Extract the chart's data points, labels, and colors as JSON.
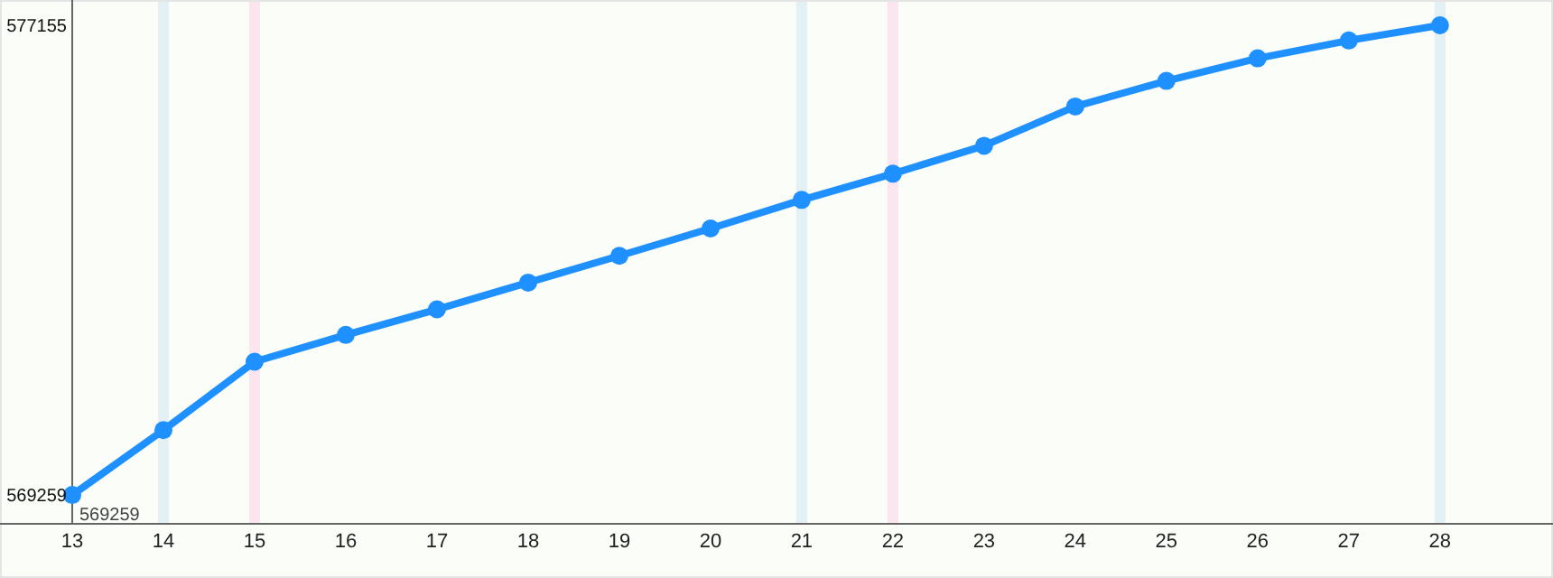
{
  "chart_data": {
    "type": "line",
    "x": [
      13,
      14,
      15,
      16,
      17,
      18,
      19,
      20,
      21,
      22,
      23,
      24,
      25,
      26,
      27,
      28
    ],
    "series": [
      {
        "color": "#1e90ff",
        "values": [
          569259,
          570350,
          571500,
          571950,
          572380,
          572830,
          573280,
          573740,
          574220,
          574660,
          575130,
          575790,
          576220,
          576600,
          576900,
          577155
        ]
      }
    ],
    "xlim": [
      13,
      29.2
    ],
    "xticks": [
      13,
      14,
      15,
      16,
      17,
      18,
      19,
      20,
      21,
      22,
      23,
      24,
      25,
      26,
      27,
      28
    ],
    "ylim": [
      568775,
      577550
    ],
    "yticks": [
      569259,
      577155
    ],
    "bands": [
      {
        "axis": "x",
        "from": 13.94,
        "to": 14.06,
        "color": "#e3f0f4"
      },
      {
        "axis": "x",
        "from": 14.94,
        "to": 15.06,
        "color": "#fbe6f0"
      },
      {
        "axis": "x",
        "from": 20.94,
        "to": 21.06,
        "color": "#e3f0f4"
      },
      {
        "axis": "x",
        "from": 21.94,
        "to": 22.06,
        "color": "#fbe6f0"
      },
      {
        "axis": "x",
        "from": 27.94,
        "to": 28.06,
        "color": "#e3f0f4"
      }
    ],
    "annotations": [
      {
        "text": "569259",
        "x": 13,
        "y": 569259
      }
    ],
    "marker": "circle",
    "line_style": "solid"
  }
}
